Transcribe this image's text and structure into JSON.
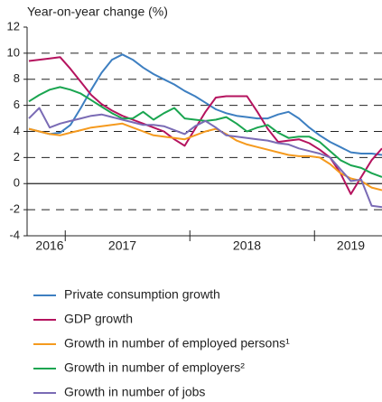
{
  "chart_data": {
    "type": "line",
    "title": "Year-on-year change (%)",
    "categories": [
      null,
      null,
      "2016",
      null,
      null,
      null,
      null,
      null,
      null,
      "2017",
      null,
      null,
      null,
      null,
      null,
      null,
      null,
      null,
      null,
      null,
      null,
      "2018",
      null,
      null,
      null,
      null,
      null,
      null,
      null,
      null,
      null,
      "2019",
      null,
      null,
      null
    ],
    "ylim": [
      -4,
      12
    ],
    "yticks": [
      -4,
      -2,
      0,
      2,
      4,
      6,
      8,
      10,
      12
    ],
    "grid": true,
    "series": [
      {
        "name": "Private consumption growth",
        "color": "#3d7fc1",
        "values": [
          4.2,
          4.0,
          3.8,
          3.9,
          4.5,
          5.8,
          7.2,
          8.5,
          9.5,
          9.9,
          9.5,
          8.9,
          8.4,
          8.0,
          7.6,
          7.1,
          6.7,
          6.2,
          5.7,
          5.4,
          5.2,
          5.1,
          5.0,
          5.0,
          5.3,
          5.5,
          5.0,
          4.3,
          3.7,
          3.2,
          2.8,
          2.4,
          2.3,
          2.3,
          2.2
        ]
      },
      {
        "name": "GDP growth",
        "color": "#b5135e",
        "values": [
          9.4,
          9.5,
          9.6,
          9.7,
          8.8,
          7.8,
          6.8,
          6.1,
          5.6,
          5.2,
          4.9,
          4.6,
          4.3,
          4.0,
          3.4,
          2.9,
          4.2,
          5.5,
          6.6,
          6.7,
          6.7,
          6.7,
          5.5,
          4.2,
          3.2,
          3.3,
          3.4,
          3.1,
          2.6,
          2.0,
          0.8,
          -0.8,
          0.5,
          1.8,
          2.7
        ]
      },
      {
        "name": "Growth in number of employed persons¹",
        "color": "#f59a1e",
        "values": [
          4.2,
          4.0,
          3.8,
          3.7,
          3.9,
          4.1,
          4.3,
          4.4,
          4.5,
          4.6,
          4.3,
          4.0,
          3.7,
          3.6,
          3.5,
          3.4,
          3.7,
          4.0,
          4.2,
          3.8,
          3.3,
          3.0,
          2.8,
          2.6,
          2.4,
          2.2,
          2.1,
          2.1,
          2.0,
          1.5,
          0.8,
          0.4,
          0.2,
          -0.3,
          -0.5
        ]
      },
      {
        "name": "Growth in number of employers²",
        "color": "#1aa550",
        "values": [
          6.3,
          6.8,
          7.2,
          7.4,
          7.2,
          6.9,
          6.4,
          5.9,
          5.4,
          5.0,
          5.0,
          5.5,
          4.9,
          5.4,
          5.8,
          5.0,
          4.9,
          4.8,
          4.9,
          5.1,
          4.6,
          4.0,
          4.3,
          4.5,
          3.9,
          3.5,
          3.6,
          3.6,
          3.2,
          2.5,
          1.8,
          1.4,
          1.2,
          0.8,
          0.5
        ]
      },
      {
        "name": "Growth in number of jobs",
        "color": "#7a6bb5",
        "values": [
          5.0,
          5.8,
          4.3,
          4.6,
          4.8,
          5.0,
          5.2,
          5.3,
          5.1,
          4.9,
          4.7,
          4.5,
          4.5,
          4.4,
          4.1,
          3.8,
          4.4,
          4.8,
          4.3,
          3.7,
          3.6,
          3.5,
          3.4,
          3.3,
          3.1,
          3.0,
          2.7,
          2.5,
          2.3,
          2.0,
          1.1,
          0.2,
          0.3,
          -1.7,
          -1.8
        ]
      }
    ]
  }
}
